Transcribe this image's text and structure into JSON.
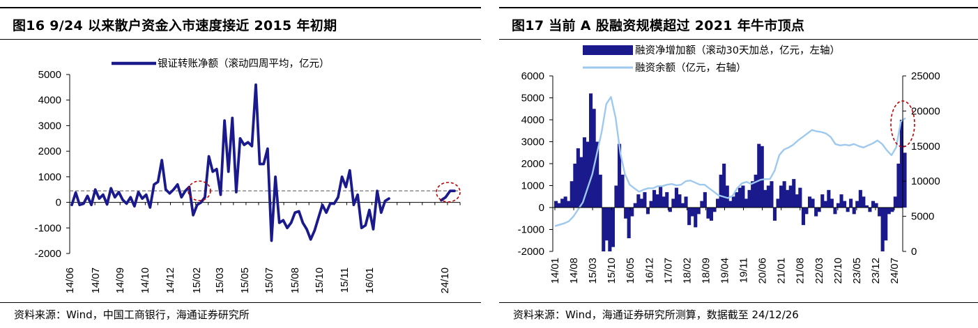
{
  "fig16": {
    "title": "图16 9/24 以来散户资金入市速度接近 2015 年初期",
    "source": "资料来源：Wind，中国工商银行，海通证券研究所"
  },
  "fig17": {
    "title": "图17 当前 A 股融资规模超过 2021 年牛市顶点",
    "source": "资料来源：Wind，海通证券研究所测算，数据截至 24/12/26"
  },
  "colors": {
    "navy": "#1a1a8c",
    "light_blue": "#9ec9ee",
    "ref_line": "#808080",
    "highlight": "#c00000"
  },
  "chart_data": [
    {
      "type": "line",
      "ylim": [
        -2000,
        5000
      ],
      "yticks": [
        "5000",
        "4000",
        "3000",
        "2000",
        "1000",
        "0",
        "-1000",
        "-2000"
      ],
      "xticks": [
        "14/06",
        "14/07",
        "14/09",
        "14/10",
        "14/12",
        "15/02",
        "15/03",
        "15/05",
        "15/07",
        "15/08",
        "15/10",
        "15/11",
        "16/01",
        "24/10"
      ],
      "reference_line": 450,
      "series": [
        {
          "name": "银证转账净额（滚动四周平均，亿元）",
          "segments": [
            [
              -100,
              380,
              -100,
              -50,
              250,
              -100,
              500,
              150,
              300,
              -80,
              550,
              200,
              400,
              100,
              -50,
              200,
              -150,
              400,
              150,
              300,
              -200,
              700,
              800,
              1650,
              500,
              350,
              500,
              700,
              200,
              450,
              600,
              -500,
              -100,
              0,
              200,
              1800,
              1200,
              1300,
              300,
              3200,
              1200,
              3300,
              400,
              2500,
              2250,
              2350,
              2200,
              4600,
              1500,
              1500,
              2100,
              -1500,
              1000,
              -800,
              -700,
              -1000,
              -800,
              -400,
              -350,
              -800,
              -1050,
              -1450,
              -1100,
              -600,
              -100,
              -400,
              -50,
              -50,
              200,
              1000,
              600,
              1250,
              -100,
              300,
              -1000,
              -900,
              -300,
              -1050,
              450,
              -400,
              50,
              150
            ],
            [
              80,
              200,
              450,
              450
            ]
          ]
        }
      ]
    },
    {
      "type": "bar+line",
      "ylim_left": [
        -2000,
        6000
      ],
      "ylim_right": [
        0,
        25000
      ],
      "yticks_left": [
        "6000",
        "5000",
        "4000",
        "3000",
        "2000",
        "1000",
        "0",
        "-1000",
        "-2000"
      ],
      "yticks_right": [
        "25000",
        "20000",
        "15000",
        "10000",
        "5000",
        "0"
      ],
      "xticks": [
        "14/01",
        "14/08",
        "15/03",
        "15/10",
        "16/05",
        "16/12",
        "17/07",
        "18/02",
        "18/09",
        "19/04",
        "19/11",
        "20/06",
        "21/01",
        "21/08",
        "22/03",
        "22/10",
        "23/05",
        "23/12",
        "24/07"
      ],
      "series": [
        {
          "name": "融资净增加额（滚动30天加总，亿元，左轴）",
          "axis": "left",
          "values": [
            300,
            200,
            400,
            500,
            300,
            1200,
            2000,
            2700,
            2300,
            3200,
            3000,
            5200,
            4500,
            3000,
            1500,
            -2000,
            -1500,
            -2000,
            -1800,
            1000,
            2900,
            1500,
            -500,
            -1400,
            -400,
            200,
            600,
            400,
            700,
            -300,
            300,
            800,
            600,
            1000,
            500,
            700,
            -200,
            400,
            900,
            600,
            200,
            500,
            -800,
            -400,
            -900,
            -300,
            300,
            700,
            -500,
            -600,
            -200,
            400,
            1500,
            2000,
            1000,
            300,
            500,
            700,
            900,
            1000,
            400,
            800,
            1200,
            1500,
            2900,
            2800,
            800,
            1000,
            1200,
            -600,
            400,
            1000,
            1200,
            800,
            1000,
            1300,
            600,
            900,
            -800,
            -300,
            500,
            400,
            -400,
            -200,
            600,
            300,
            800,
            400,
            -300,
            200,
            600,
            300,
            -200,
            400,
            -300,
            300,
            800,
            500,
            100,
            -200,
            300,
            200,
            -400,
            -2000,
            -1500,
            -300,
            -200,
            500,
            2000,
            4000,
            2500
          ]
        },
        {
          "name": "融资余额（亿元，右轴）",
          "axis": "right",
          "values": [
            3600,
            3800,
            4000,
            4300,
            5000,
            6000,
            7000,
            9000,
            11000,
            14000,
            17000,
            21000,
            22000,
            19000,
            14000,
            11000,
            9500,
            9000,
            8500,
            8800,
            9000,
            9000,
            9300,
            9300,
            9500,
            9600,
            9400,
            9500,
            10000,
            10100,
            9800,
            9500,
            9500,
            9000,
            8500,
            8000,
            7800,
            7600,
            7900,
            9000,
            9700,
            9900,
            9600,
            9900,
            10200,
            10300,
            10300,
            11500,
            13700,
            14500,
            14800,
            15200,
            15800,
            16300,
            16800,
            17300,
            17100,
            17000,
            16800,
            16300,
            15300,
            15100,
            15200,
            15100,
            15300,
            15000,
            14800,
            15100,
            15400,
            15800,
            15300,
            14400,
            13700,
            14800,
            18500,
            19000
          ]
        }
      ]
    }
  ]
}
